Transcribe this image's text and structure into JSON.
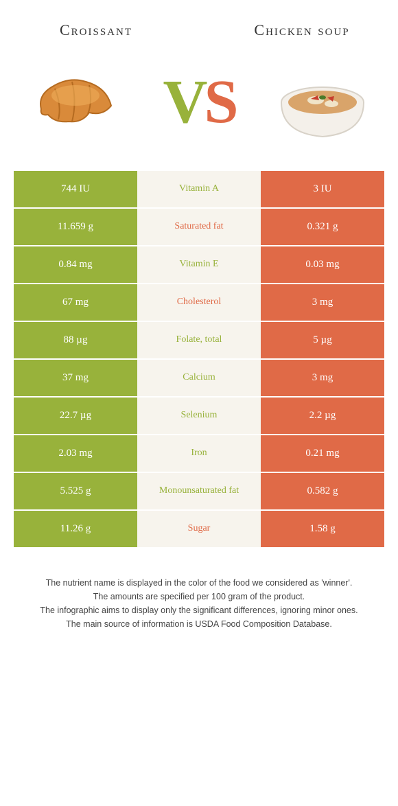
{
  "titles": {
    "left": "Croissant",
    "right": "Chicken soup"
  },
  "vs": {
    "v": "V",
    "s": "S"
  },
  "colors": {
    "left_bg": "#98b23b",
    "right_bg": "#e06a47",
    "mid_bg": "#f7f4ed",
    "left_text": "#98b23b",
    "right_text": "#e06a47"
  },
  "rows": [
    {
      "left": "744 IU",
      "label": "Vitamin A",
      "right": "3 IU",
      "winner": "left"
    },
    {
      "left": "11.659 g",
      "label": "Saturated fat",
      "right": "0.321 g",
      "winner": "right"
    },
    {
      "left": "0.84 mg",
      "label": "Vitamin E",
      "right": "0.03 mg",
      "winner": "left"
    },
    {
      "left": "67 mg",
      "label": "Cholesterol",
      "right": "3 mg",
      "winner": "right"
    },
    {
      "left": "88 µg",
      "label": "Folate, total",
      "right": "5 µg",
      "winner": "left"
    },
    {
      "left": "37 mg",
      "label": "Calcium",
      "right": "3 mg",
      "winner": "left"
    },
    {
      "left": "22.7 µg",
      "label": "Selenium",
      "right": "2.2 µg",
      "winner": "left"
    },
    {
      "left": "2.03 mg",
      "label": "Iron",
      "right": "0.21 mg",
      "winner": "left"
    },
    {
      "left": "5.525 g",
      "label": "Monounsaturated fat",
      "right": "0.582 g",
      "winner": "left"
    },
    {
      "left": "11.26 g",
      "label": "Sugar",
      "right": "1.58 g",
      "winner": "right"
    }
  ],
  "footer": [
    "The nutrient name is displayed in the color of the food we considered as 'winner'.",
    "The amounts are specified per 100 gram of the product.",
    "The infographic aims to display only the significant differences, ignoring minor ones.",
    "The main source of information is USDA Food Composition Database."
  ]
}
